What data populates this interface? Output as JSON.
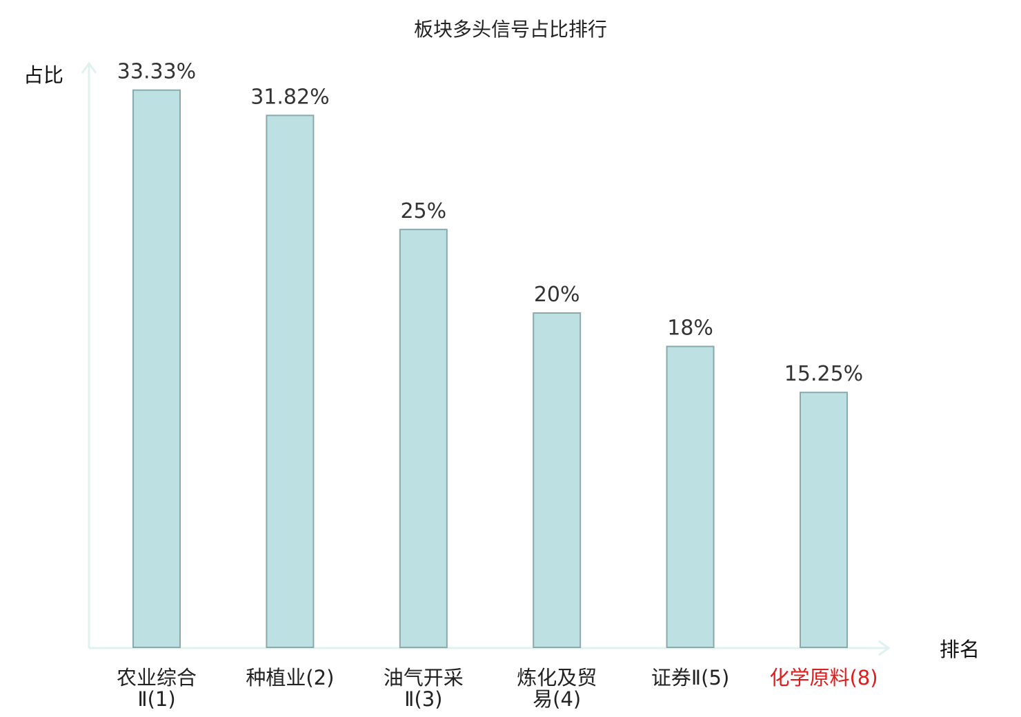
{
  "chart_data": {
    "type": "bar",
    "title": "板块多头信号占比排行",
    "ylabel": "占比",
    "xlabel": "排名",
    "ylim": [
      0,
      35
    ],
    "grid": false,
    "categories": [
      {
        "lines": [
          "农业综合",
          "Ⅱ(1)"
        ],
        "highlight": false
      },
      {
        "lines": [
          "种植业(2)"
        ],
        "highlight": false
      },
      {
        "lines": [
          "油气开采",
          "Ⅱ(3)"
        ],
        "highlight": false
      },
      {
        "lines": [
          "炼化及贸",
          "易(4)"
        ],
        "highlight": false
      },
      {
        "lines": [
          "证券Ⅱ(5)"
        ],
        "highlight": false
      },
      {
        "lines": [
          "化学原料(8)"
        ],
        "highlight": true
      }
    ],
    "values": [
      33.33,
      31.82,
      25,
      20,
      18,
      15.25
    ],
    "value_labels": [
      "33.33%",
      "31.82%",
      "25%",
      "20%",
      "18%",
      "15.25%"
    ],
    "colors": {
      "bar_fill": "#bde0e3",
      "bar_stroke": "#8aa9aa",
      "axis": "#e0f2ef",
      "highlight_label": "#e01b1b",
      "label": "#222222"
    }
  }
}
